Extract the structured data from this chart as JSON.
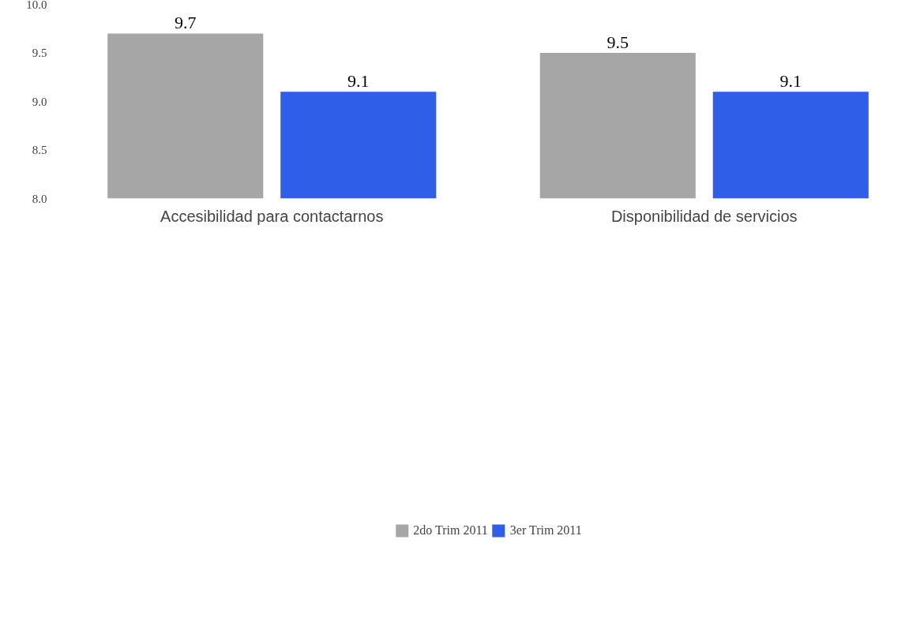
{
  "chart_data": {
    "type": "bar",
    "categories": [
      "Accesibilidad para contactarnos",
      "Disponibilidad de servicios"
    ],
    "series": [
      {
        "name": "2do Trim 2011",
        "color": "#a6a6a6",
        "values": [
          9.7,
          9.5
        ]
      },
      {
        "name": "3er Trim 2011",
        "color": "#2f5fe8",
        "values": [
          9.1,
          9.1
        ]
      }
    ],
    "ylim": [
      8.0,
      10.0
    ],
    "yticks": [
      {
        "value": 8.0,
        "label": "8.0"
      },
      {
        "value": 8.5,
        "label": "8.5"
      },
      {
        "value": 9.0,
        "label": "9.0"
      },
      {
        "value": 9.5,
        "label": "9.5"
      },
      {
        "value": 10.0,
        "label": "10.0"
      }
    ],
    "data_labels": true,
    "grid": false,
    "legend": "bottom"
  }
}
